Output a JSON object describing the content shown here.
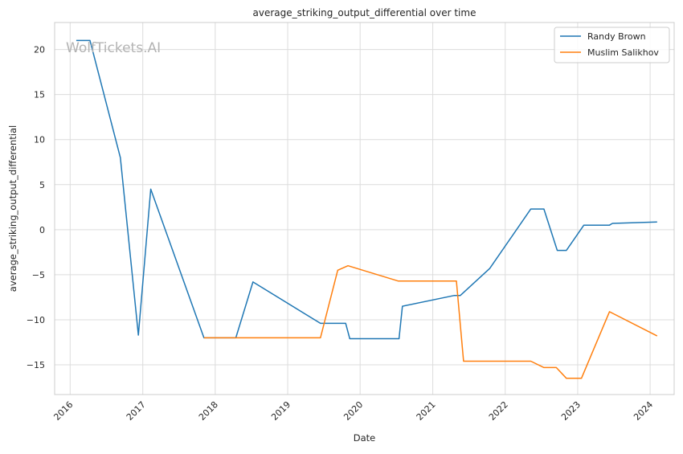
{
  "chart_data": {
    "type": "line",
    "title": "average_striking_output_differential over time",
    "xlabel": "Date",
    "ylabel": "average_striking_output_differential",
    "xlim": [
      "2015-10-15",
      "2024-05-01"
    ],
    "ylim": [
      -18.3,
      23.0
    ],
    "x_ticks": [
      "2016-01-01",
      "2017-01-01",
      "2018-01-01",
      "2019-01-01",
      "2020-01-01",
      "2021-01-01",
      "2022-01-01",
      "2023-01-01",
      "2024-01-01"
    ],
    "x_tick_labels": [
      "2016",
      "2017",
      "2018",
      "2019",
      "2020",
      "2021",
      "2022",
      "2023",
      "2024"
    ],
    "y_ticks": [
      -15,
      -10,
      -5,
      0,
      5,
      10,
      15,
      20
    ],
    "y_tick_labels": [
      "−15",
      "−10",
      "−5",
      "0",
      "5",
      "10",
      "15",
      "20"
    ],
    "grid": true,
    "legend_position": "top-right",
    "watermark": "WolfTickets.AI",
    "series": [
      {
        "name": "Randy Brown",
        "color": "#1f77b4",
        "points": [
          [
            "2016-02-01",
            21.0
          ],
          [
            "2016-04-10",
            21.0
          ],
          [
            "2016-09-10",
            8.0
          ],
          [
            "2016-12-10",
            -11.7
          ],
          [
            "2017-02-10",
            4.5
          ],
          [
            "2017-11-05",
            -12.0
          ],
          [
            "2018-04-15",
            -12.0
          ],
          [
            "2018-07-10",
            -5.8
          ],
          [
            "2019-06-15",
            -10.4
          ],
          [
            "2019-10-20",
            -10.4
          ],
          [
            "2019-11-10",
            -12.1
          ],
          [
            "2020-07-15",
            -12.1
          ],
          [
            "2020-08-01",
            -8.5
          ],
          [
            "2021-04-20",
            -7.3
          ],
          [
            "2021-05-20",
            -7.3
          ],
          [
            "2021-10-15",
            -4.3
          ],
          [
            "2022-05-10",
            2.3
          ],
          [
            "2022-07-15",
            2.3
          ],
          [
            "2022-09-20",
            -2.3
          ],
          [
            "2022-11-05",
            -2.3
          ],
          [
            "2023-02-01",
            0.5
          ],
          [
            "2023-06-10",
            0.5
          ],
          [
            "2023-06-25",
            0.7
          ],
          [
            "2024-02-05",
            0.85
          ]
        ]
      },
      {
        "name": "Muslim Salikhov",
        "color": "#ff7f0e",
        "points": [
          [
            "2017-11-05",
            -12.0
          ],
          [
            "2019-06-15",
            -12.0
          ],
          [
            "2019-09-10",
            -4.5
          ],
          [
            "2019-11-01",
            -4.0
          ],
          [
            "2020-07-10",
            -5.7
          ],
          [
            "2021-04-30",
            -5.7
          ],
          [
            "2021-06-05",
            -14.6
          ],
          [
            "2022-05-10",
            -14.6
          ],
          [
            "2022-07-15",
            -15.3
          ],
          [
            "2022-09-15",
            -15.3
          ],
          [
            "2022-11-05",
            -16.5
          ],
          [
            "2023-01-20",
            -16.5
          ],
          [
            "2023-06-10",
            -9.1
          ],
          [
            "2024-02-05",
            -11.8
          ]
        ]
      }
    ]
  }
}
